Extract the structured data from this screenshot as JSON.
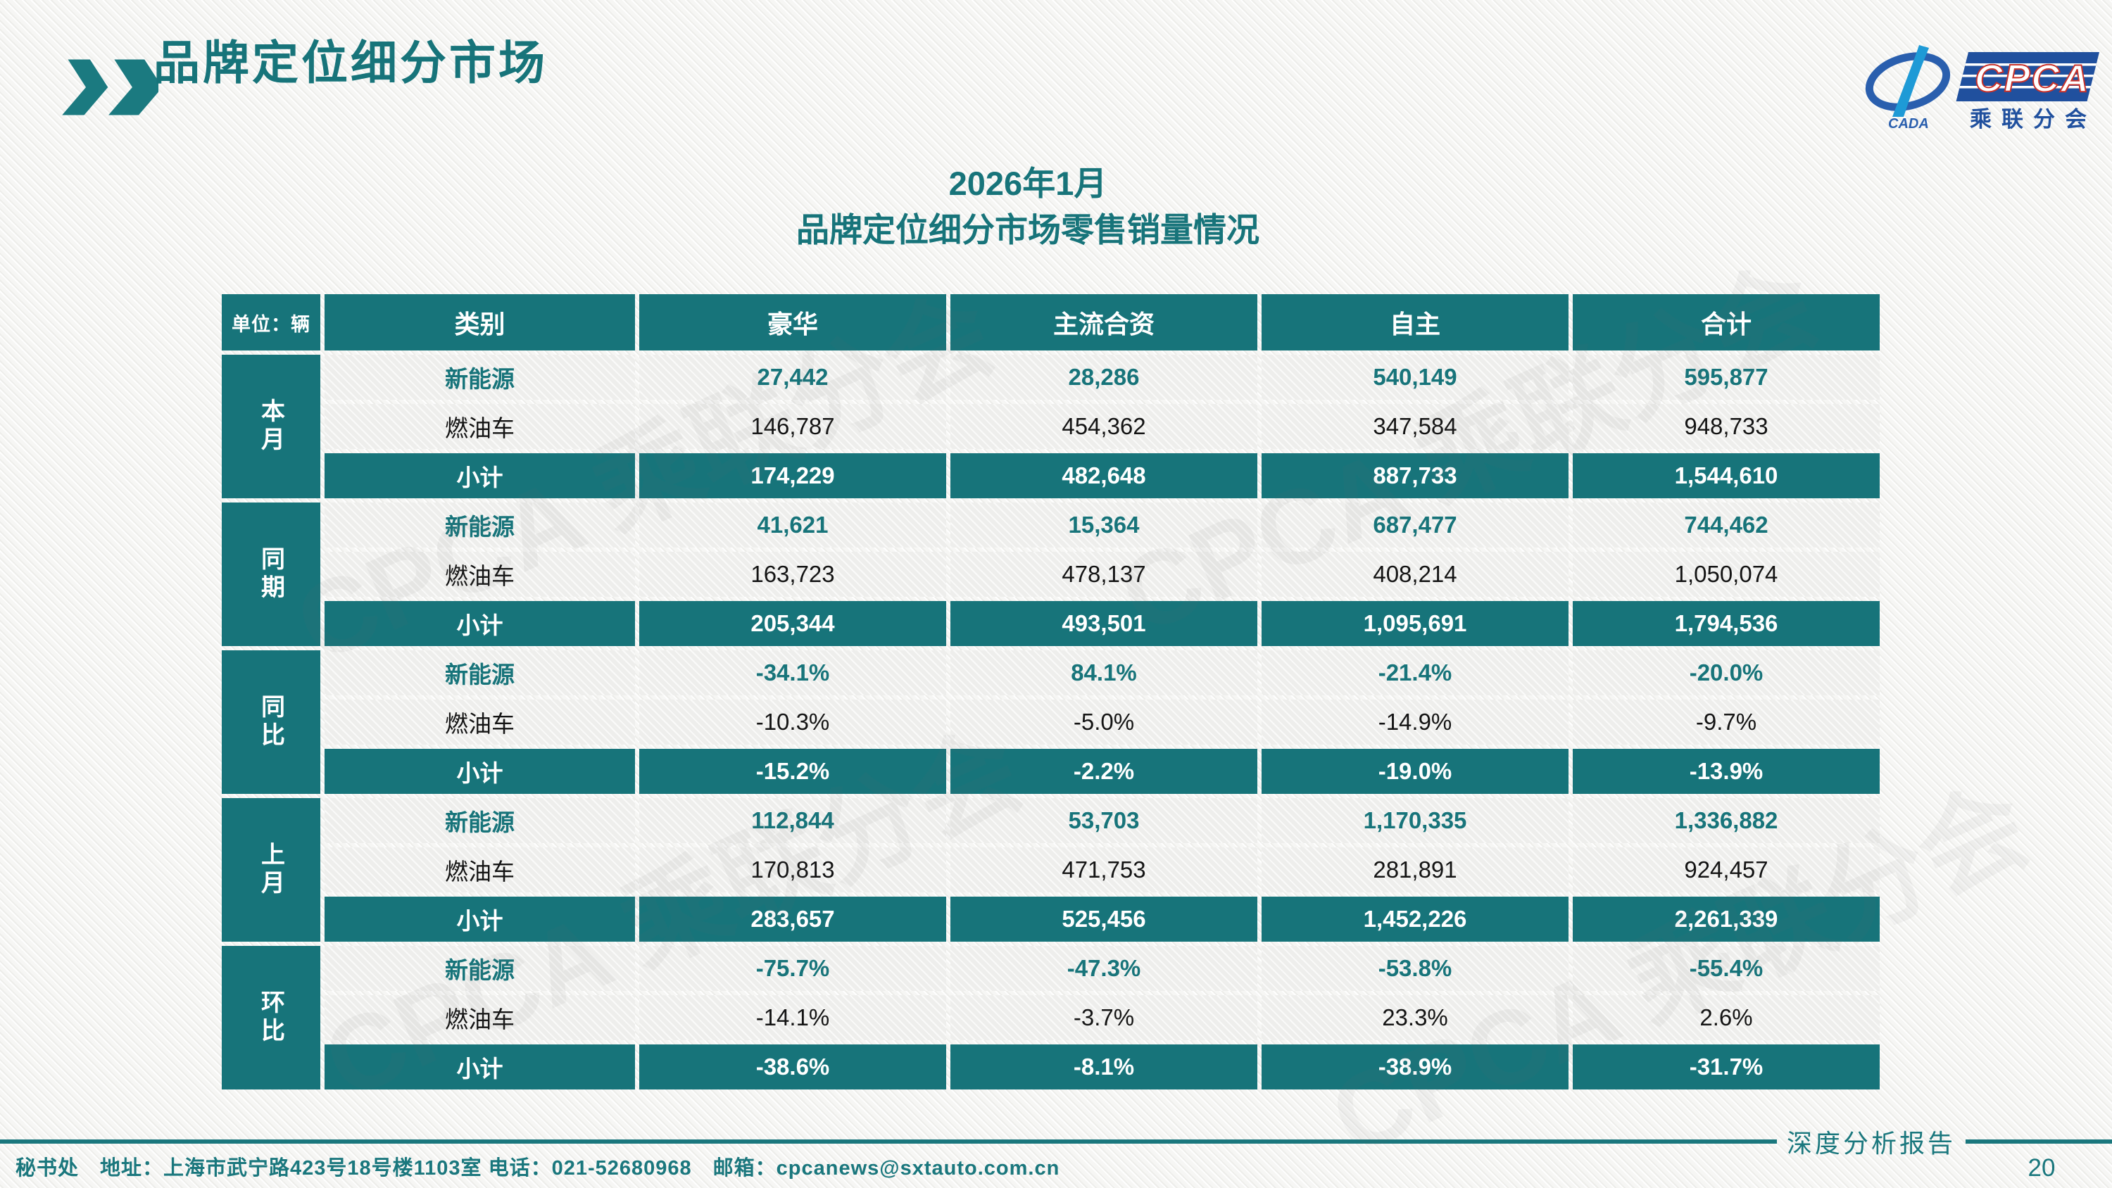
{
  "page": {
    "title": "品牌定位细分市场",
    "report_label": "深度分析报告",
    "page_number": "20",
    "footer_contact": "秘书处　地址：上海市武宁路423号18号楼1103室 电话：021-52680968　邮箱：cpcanews@sxtauto.com.cn"
  },
  "logo": {
    "cada_wordmark": "CADA",
    "cpca_wordmark": "CPCA",
    "cpca_sub": "乘联分会"
  },
  "chart_title": {
    "line1": "2026年1月",
    "line2": "品牌定位细分市场零售销量情况"
  },
  "watermark_text": "CPCA 乘联分会",
  "colors": {
    "teal": "#17747a",
    "footer_teal": "#1a777d",
    "logo_blue": "#20509e",
    "logo_red": "#c8322b",
    "light_cell": "#eeeeec"
  },
  "table": {
    "unit_label": "单位：辆",
    "columns": [
      "类别",
      "豪华",
      "主流合资",
      "自主",
      "合计"
    ],
    "groups": [
      {
        "label": "本月",
        "rows": [
          {
            "label": "新能源",
            "values": [
              "27,442",
              "28,286",
              "540,149",
              "595,877"
            ]
          },
          {
            "label": "燃油车",
            "values": [
              "146,787",
              "454,362",
              "347,584",
              "948,733"
            ]
          },
          {
            "label": "小计",
            "values": [
              "174,229",
              "482,648",
              "887,733",
              "1,544,610"
            ]
          }
        ]
      },
      {
        "label": "同期",
        "rows": [
          {
            "label": "新能源",
            "values": [
              "41,621",
              "15,364",
              "687,477",
              "744,462"
            ]
          },
          {
            "label": "燃油车",
            "values": [
              "163,723",
              "478,137",
              "408,214",
              "1,050,074"
            ]
          },
          {
            "label": "小计",
            "values": [
              "205,344",
              "493,501",
              "1,095,691",
              "1,794,536"
            ]
          }
        ]
      },
      {
        "label": "同比",
        "rows": [
          {
            "label": "新能源",
            "values": [
              "-34.1%",
              "84.1%",
              "-21.4%",
              "-20.0%"
            ]
          },
          {
            "label": "燃油车",
            "values": [
              "-10.3%",
              "-5.0%",
              "-14.9%",
              "-9.7%"
            ]
          },
          {
            "label": "小计",
            "values": [
              "-15.2%",
              "-2.2%",
              "-19.0%",
              "-13.9%"
            ]
          }
        ]
      },
      {
        "label": "上月",
        "rows": [
          {
            "label": "新能源",
            "values": [
              "112,844",
              "53,703",
              "1,170,335",
              "1,336,882"
            ]
          },
          {
            "label": "燃油车",
            "values": [
              "170,813",
              "471,753",
              "281,891",
              "924,457"
            ]
          },
          {
            "label": "小计",
            "values": [
              "283,657",
              "525,456",
              "1,452,226",
              "2,261,339"
            ]
          }
        ]
      },
      {
        "label": "环比",
        "rows": [
          {
            "label": "新能源",
            "values": [
              "-75.7%",
              "-47.3%",
              "-53.8%",
              "-55.4%"
            ]
          },
          {
            "label": "燃油车",
            "values": [
              "-14.1%",
              "-3.7%",
              "23.3%",
              "2.6%"
            ]
          },
          {
            "label": "小计",
            "values": [
              "-38.6%",
              "-8.1%",
              "-38.9%",
              "-31.7%"
            ]
          }
        ]
      }
    ]
  }
}
